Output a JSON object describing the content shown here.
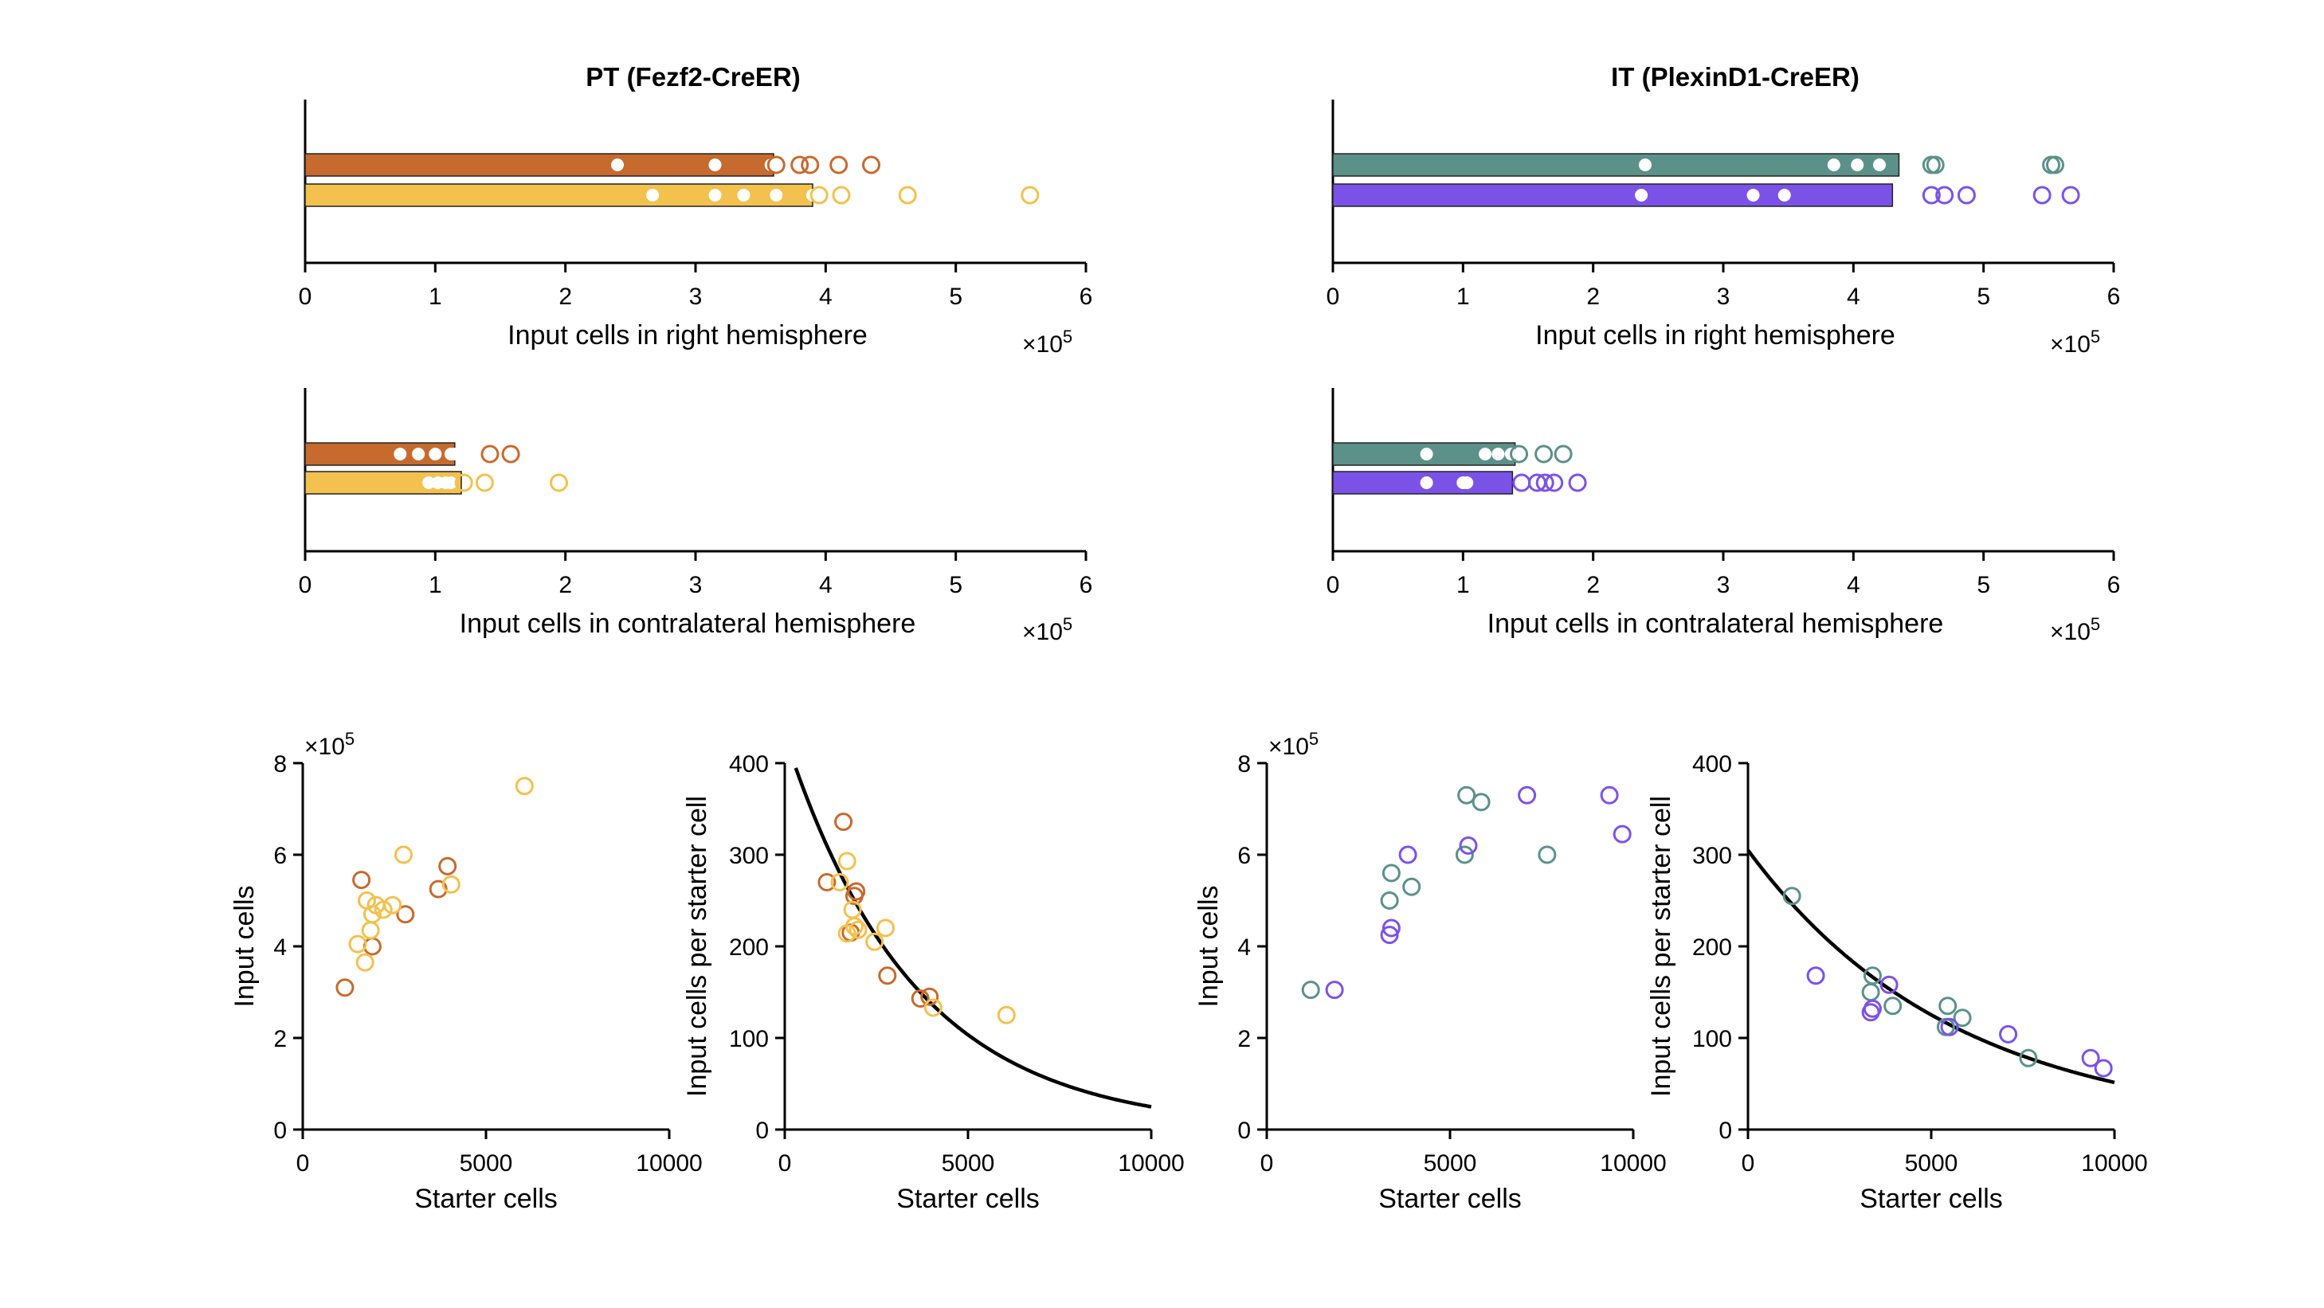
{
  "colors": {
    "pt_right": "#C66A2E",
    "pt_contra": "#F2C14E",
    "it_right": "#5B9189",
    "it_contra": "#7B52E8",
    "fit": "#000000"
  },
  "panel_titles": {
    "pt": "PT (Fezf2-CreER)",
    "it": "IT (PlexinD1-CreER)"
  },
  "chart_data": [
    {
      "id": "pt-right",
      "type": "bar",
      "orientation": "horizontal",
      "title": "PT (Fezf2-CreER)",
      "xlabel": "Input cells in right hemisphere",
      "x_multiplier": "×10",
      "x_exponent": "5",
      "xlim": [
        0,
        6
      ],
      "xticks": [
        "0",
        "1",
        "2",
        "3",
        "4",
        "5",
        "6"
      ],
      "series": [
        {
          "color": "pt_right",
          "value": 3.6,
          "points": [
            2.4,
            3.15,
            3.6,
            3.58,
            3.62,
            3.8,
            3.88,
            4.1,
            4.35
          ]
        },
        {
          "color": "pt_contra",
          "value": 3.9,
          "points": [
            2.67,
            3.15,
            3.37,
            3.62,
            3.9,
            3.95,
            4.12,
            4.63,
            5.57
          ]
        }
      ]
    },
    {
      "id": "it-right",
      "type": "bar",
      "orientation": "horizontal",
      "title": "IT (PlexinD1-CreER)",
      "xlabel": "Input cells in right hemisphere",
      "x_multiplier": "×10",
      "x_exponent": "5",
      "xlim": [
        0,
        6
      ],
      "xticks": [
        "0",
        "1",
        "2",
        "3",
        "4",
        "5",
        "6"
      ],
      "series": [
        {
          "color": "it_right",
          "value": 4.35,
          "points": [
            2.4,
            3.85,
            4.03,
            4.2,
            4.6,
            4.63,
            5.52,
            5.55
          ]
        },
        {
          "color": "it_contra",
          "value": 4.3,
          "points": [
            2.37,
            3.23,
            3.47,
            4.6,
            4.7,
            4.87,
            5.45,
            5.67
          ]
        }
      ]
    },
    {
      "id": "pt-contra",
      "type": "bar",
      "orientation": "horizontal",
      "xlabel": "Input cells in contralateral hemisphere",
      "x_multiplier": "×10",
      "x_exponent": "5",
      "xlim": [
        0,
        6
      ],
      "xticks": [
        "0",
        "1",
        "2",
        "3",
        "4",
        "5",
        "6"
      ],
      "series": [
        {
          "color": "pt_right",
          "value": 1.15,
          "points": [
            0.73,
            0.87,
            1.0,
            1.12,
            1.15,
            1.42,
            1.58
          ]
        },
        {
          "color": "pt_contra",
          "value": 1.2,
          "points": [
            0.95,
            1.02,
            1.08,
            1.12,
            1.22,
            1.38,
            1.95
          ]
        }
      ]
    },
    {
      "id": "it-contra",
      "type": "bar",
      "orientation": "horizontal",
      "xlabel": "Input cells in contralateral hemisphere",
      "x_multiplier": "×10",
      "x_exponent": "5",
      "xlim": [
        0,
        6
      ],
      "xticks": [
        "0",
        "1",
        "2",
        "3",
        "4",
        "5",
        "6"
      ],
      "series": [
        {
          "color": "it_right",
          "value": 1.4,
          "points": [
            0.72,
            1.17,
            1.27,
            1.37,
            1.43,
            1.62,
            1.77
          ]
        },
        {
          "color": "it_contra",
          "value": 1.38,
          "points": [
            0.72,
            1.0,
            1.03,
            1.45,
            1.57,
            1.63,
            1.7,
            1.88
          ]
        }
      ]
    },
    {
      "id": "pt-scatter",
      "type": "scatter",
      "xlabel": "Starter cells",
      "ylabel": "Input cells",
      "y_multiplier": "×10",
      "y_exponent": "5",
      "xlim": [
        0,
        10000
      ],
      "ylim": [
        0,
        8
      ],
      "xticks": [
        "0",
        "5000",
        "10000"
      ],
      "yticks": [
        "0",
        "2",
        "4",
        "6",
        "8"
      ],
      "series": [
        {
          "color": "pt_right",
          "points": [
            [
              1150,
              3.1
            ],
            [
              1600,
              5.45
            ],
            [
              1900,
              4.0
            ],
            [
              2800,
              4.7
            ],
            [
              3700,
              5.25
            ],
            [
              3950,
              5.75
            ]
          ]
        },
        {
          "color": "pt_contra",
          "points": [
            [
              1500,
              4.05
            ],
            [
              1700,
              3.65
            ],
            [
              1750,
              5.0
            ],
            [
              1850,
              4.35
            ],
            [
              1900,
              4.7
            ],
            [
              2000,
              4.9
            ],
            [
              2200,
              4.8
            ],
            [
              2450,
              4.9
            ],
            [
              2750,
              6.0
            ],
            [
              4050,
              5.35
            ],
            [
              6050,
              7.5
            ]
          ]
        }
      ]
    },
    {
      "id": "pt-ratio",
      "type": "scatter",
      "xlabel": "Starter cells",
      "ylabel": "Input cells per starter cell",
      "xlim": [
        0,
        10000
      ],
      "ylim": [
        0,
        400
      ],
      "xticks": [
        "0",
        "5000",
        "10000"
      ],
      "yticks": [
        "0",
        "100",
        "200",
        "300",
        "400"
      ],
      "fit": {
        "a": 430,
        "b": 0.000285
      },
      "series": [
        {
          "color": "pt_right",
          "points": [
            [
              1150,
              270
            ],
            [
              1600,
              336
            ],
            [
              1800,
              215
            ],
            [
              1900,
              255
            ],
            [
              1950,
              260
            ],
            [
              2800,
              168
            ],
            [
              3700,
              143
            ],
            [
              3950,
              145
            ]
          ]
        },
        {
          "color": "pt_contra",
          "points": [
            [
              1500,
              270
            ],
            [
              1700,
              293
            ],
            [
              1700,
              214
            ],
            [
              1850,
              240
            ],
            [
              1900,
              222
            ],
            [
              2000,
              218
            ],
            [
              2450,
              205
            ],
            [
              2750,
              220
            ],
            [
              4050,
              133
            ],
            [
              6050,
              125
            ]
          ]
        }
      ]
    },
    {
      "id": "it-scatter",
      "type": "scatter",
      "xlabel": "Starter cells",
      "ylabel": "Input cells",
      "y_multiplier": "×10",
      "y_exponent": "5",
      "xlim": [
        0,
        10000
      ],
      "ylim": [
        0,
        8
      ],
      "xticks": [
        "0",
        "5000",
        "10000"
      ],
      "yticks": [
        "0",
        "2",
        "4",
        "6",
        "8"
      ],
      "series": [
        {
          "color": "it_right",
          "points": [
            [
              1200,
              3.05
            ],
            [
              3350,
              5.0
            ],
            [
              3400,
              5.6
            ],
            [
              3950,
              5.3
            ],
            [
              5400,
              6.0
            ],
            [
              5450,
              7.3
            ],
            [
              5850,
              7.15
            ],
            [
              7650,
              6.0
            ]
          ]
        },
        {
          "color": "it_contra",
          "points": [
            [
              1850,
              3.05
            ],
            [
              3350,
              4.25
            ],
            [
              3400,
              4.4
            ],
            [
              3850,
              6.0
            ],
            [
              5500,
              6.2
            ],
            [
              7100,
              7.3
            ],
            [
              9350,
              7.3
            ],
            [
              9700,
              6.45
            ]
          ]
        }
      ]
    },
    {
      "id": "it-ratio",
      "type": "scatter",
      "xlabel": "Starter cells",
      "ylabel": "Input cells per starter cell",
      "xlim": [
        0,
        10000
      ],
      "ylim": [
        0,
        400
      ],
      "xticks": [
        "0",
        "5000",
        "10000"
      ],
      "yticks": [
        "0",
        "100",
        "200",
        "300",
        "400"
      ],
      "fit": {
        "a": 305,
        "b": 0.000178
      },
      "series": [
        {
          "color": "it_right",
          "points": [
            [
              1200,
              255
            ],
            [
              3350,
              150
            ],
            [
              3400,
              168
            ],
            [
              3950,
              135
            ],
            [
              5400,
              112
            ],
            [
              5450,
              135
            ],
            [
              5850,
              122
            ],
            [
              7650,
              78
            ]
          ]
        },
        {
          "color": "it_contra",
          "points": [
            [
              1850,
              168
            ],
            [
              3350,
              128
            ],
            [
              3400,
              132
            ],
            [
              3850,
              158
            ],
            [
              5500,
              112
            ],
            [
              7100,
              104
            ],
            [
              9350,
              78
            ],
            [
              9700,
              67
            ]
          ]
        }
      ]
    }
  ]
}
